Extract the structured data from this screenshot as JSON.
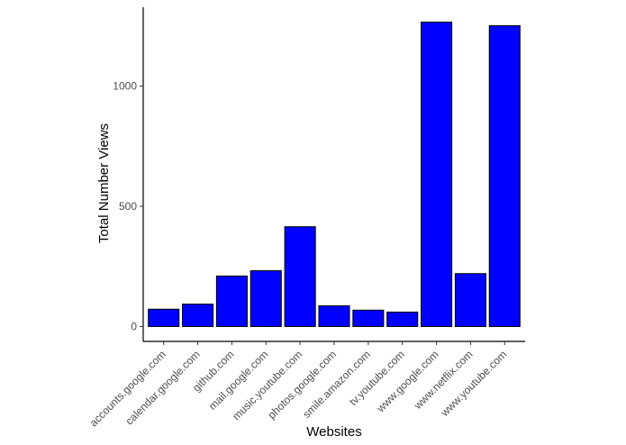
{
  "chart_data": {
    "type": "bar",
    "title": "",
    "xlabel": "Websites",
    "ylabel": "Total Number Views",
    "categories": [
      "accounts.google.com",
      "calendar.google.com",
      "github.com",
      "mail.google.com",
      "music.youtube.com",
      "photos.google.com",
      "smile.amazon.com",
      "tv.youtube.com",
      "www.google.com",
      "www.netflix.com",
      "www.youtube.com"
    ],
    "values": [
      72,
      93,
      210,
      232,
      415,
      86,
      68,
      60,
      1266,
      220,
      1251
    ],
    "ylim": [
      -62,
      1328
    ],
    "yticks": [
      0,
      500,
      1000
    ],
    "grid": false,
    "bar_color": "#0000ff",
    "bar_edge_color": "#000000",
    "axis_color": "#000000"
  }
}
